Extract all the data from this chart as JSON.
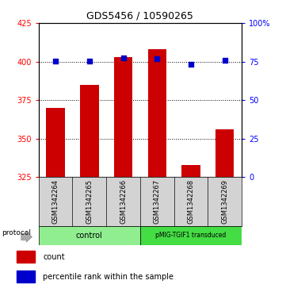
{
  "title": "GDS5456 / 10590265",
  "samples": [
    "GSM1342264",
    "GSM1342265",
    "GSM1342266",
    "GSM1342267",
    "GSM1342268",
    "GSM1342269"
  ],
  "counts": [
    370,
    385,
    403,
    408,
    333,
    356
  ],
  "percentiles": [
    75.5,
    75.5,
    77.5,
    77.0,
    73.5,
    76.0
  ],
  "ylim_left": [
    325,
    425
  ],
  "ylim_right": [
    0,
    100
  ],
  "yticks_left": [
    325,
    350,
    375,
    400,
    425
  ],
  "yticks_right": [
    0,
    25,
    50,
    75,
    100
  ],
  "bar_color": "#cc0000",
  "dot_color": "#0000cc",
  "bar_width": 0.55,
  "legend_bar_label": "count",
  "legend_dot_label": "percentile rank within the sample",
  "ctrl_color": "#90ee90",
  "pmig_color": "#44dd44",
  "sample_box_color": "#d3d3d3",
  "title_fontsize": 9,
  "tick_fontsize": 7,
  "sample_fontsize": 6
}
